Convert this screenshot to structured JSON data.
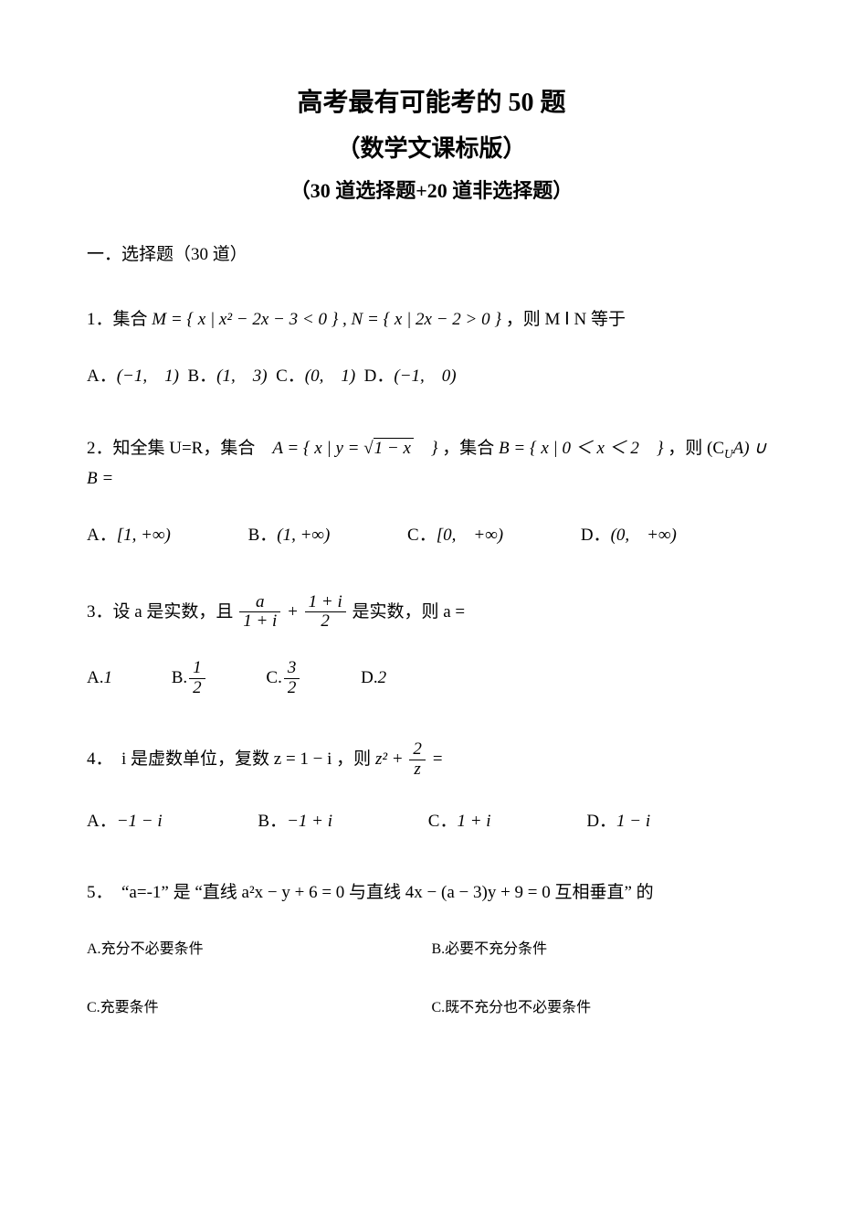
{
  "colors": {
    "background": "#ffffff",
    "text": "#000000"
  },
  "typography": {
    "body_font": "SimSun",
    "math_font": "Times New Roman",
    "title_size_pt": 21,
    "subtitle_size_pt": 19,
    "body_size_pt": 14
  },
  "title": {
    "line1": "高考最有可能考的 50 题",
    "line2": "（数学文课标版）",
    "line3": "（30 道选择题+20 道非选择题）"
  },
  "section_heading": "一．选择题（30 道）",
  "q1": {
    "prefix": "1．集合 ",
    "math": "M = { x | x² − 2x − 3 < 0 } , N = { x | 2x − 2 > 0 }",
    "suffix": " ，则 M Ⅰ N 等于",
    "optA_label": "A．",
    "optA": "(−1,　1)",
    "optB_label": "B．",
    "optB": "(1,　3)",
    "optC_label": "C．",
    "optC": "(0,　1)",
    "optD_label": "D．",
    "optD": "(−1,　0)"
  },
  "q2": {
    "prefix": "2．知全集 U=R，集合　",
    "setA_pre": "A = { x | y = ",
    "sqrt_radicand": "1 − x",
    "setA_post": "　}",
    "mid": " ，集合 ",
    "setB": "B = { x | 0 ＜ x ＜ 2　}",
    "suffix_pre": " ，则 (C",
    "suffix_sub": "U",
    "suffix_post": "A) ∪ B =",
    "optA_label": "A．",
    "optA": "[1, +∞)",
    "optB_label": "B．",
    "optB": "(1, +∞)",
    "optC_label": "C．",
    "optC": "[0,　+∞)",
    "optD_label": "D．",
    "optD": "(0,　+∞)"
  },
  "q3": {
    "prefix": "3．设 a 是实数，且 ",
    "frac1_num": "a",
    "frac1_den": "1 + i",
    "plus": " + ",
    "frac2_num": "1 + i",
    "frac2_den": "2",
    "suffix": " 是实数，则 a =",
    "optA_label": "A.",
    "optA": "1",
    "optB_label": "B.",
    "optB_num": "1",
    "optB_den": "2",
    "optC_label": "C.",
    "optC_num": "3",
    "optC_den": "2",
    "optD_label": "D.",
    "optD": "2"
  },
  "q4": {
    "prefix": "4．　i 是虚数单位，复数 z = 1 − i ，则 ",
    "term1": "z²",
    "plus": " + ",
    "frac_num": "2",
    "frac_den": "z",
    "eq": " =",
    "optA_label": "A．",
    "optA": "−1 − i",
    "optB_label": "B．",
    "optB": "−1 + i",
    "optC_label": "C．",
    "optC": "1 + i",
    "optD_label": "D．",
    "optD": "1 − i"
  },
  "q5": {
    "text": "5．　“a=-1” 是 “直线 a²x − y + 6 = 0 与直线 4x − (a − 3)y + 9 = 0 互相垂直” 的",
    "optA_label": "A.",
    "optA": "充分不必要条件",
    "optB_label": "B.",
    "optB": "必要不充分条件",
    "optC_label": "C.",
    "optC": "充要条件",
    "optD_label": "C.",
    "optD": "既不充分也不必要条件"
  }
}
